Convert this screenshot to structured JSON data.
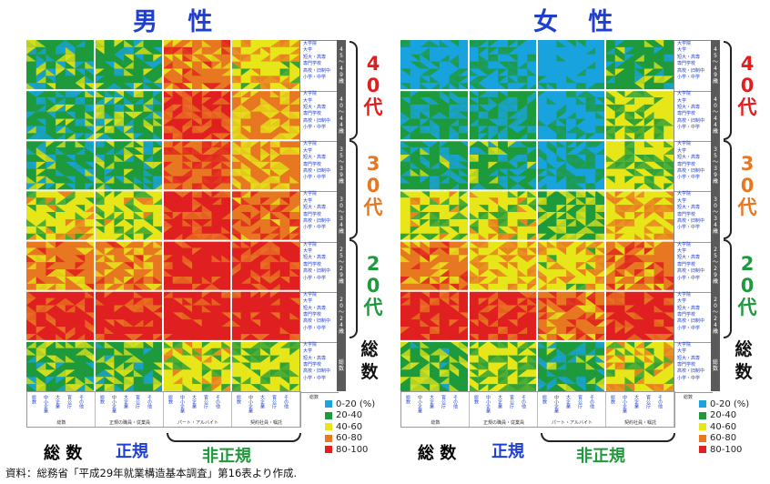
{
  "panels": [
    {
      "title": "男 性",
      "age_labels": [
        {
          "text": "4\n0\n代",
          "color": "#e02020"
        },
        {
          "text": "3\n0\n代",
          "color": "#e87722"
        },
        {
          "text": "2\n0\n代",
          "color": "#1e9a3c"
        }
      ],
      "sousu": "総\n数",
      "bottom": {
        "total": "総 数",
        "regular": "正規",
        "nonregular": "非正規"
      }
    },
    {
      "title": "女 性",
      "age_labels": [
        {
          "text": "4\n0\n代",
          "color": "#e02020"
        },
        {
          "text": "3\n0\n代",
          "color": "#e87722"
        },
        {
          "text": "2\n0\n代",
          "color": "#1e9a3c"
        }
      ],
      "sousu": "総\n数",
      "bottom": {
        "total": "総 数",
        "regular": "正規",
        "nonregular": "非正規"
      }
    }
  ],
  "row_items": [
    "大学院",
    "大学",
    "短大・高専",
    "専門学校",
    "高校・旧制中",
    "小学・中学"
  ],
  "row_items_small": [
    "大学院",
    "大学"
  ],
  "age_bands": [
    "45〜49歳",
    "40〜44歳",
    "35〜39歳",
    "30〜34歳",
    "25〜29歳",
    "20〜24歳",
    "総数"
  ],
  "band_footer": "総数",
  "column_groups": [
    "総数",
    "正規の職員・従業員",
    "パート・アルバイト",
    "契約社員・嘱託"
  ],
  "column_items": [
    "総数",
    "中小企業",
    "大企業",
    "官公庁",
    "その他"
  ],
  "legend": {
    "unit": "(%)",
    "items": [
      {
        "label": "0-20",
        "color": "#1aa3de"
      },
      {
        "label": "20-40",
        "color": "#1e9a3c"
      },
      {
        "label": "40-60",
        "color": "#e6e61a"
      },
      {
        "label": "60-80",
        "color": "#e87722"
      },
      {
        "label": "80-100",
        "color": "#e02020"
      }
    ]
  },
  "source": "資料：総務省「平成29年就業構造基本調査」第16表より作成.",
  "chart_data": {
    "type": "heatmap",
    "color_scale": [
      "#1aa3de",
      "#1e9a3c",
      "#e6e61a",
      "#e87722",
      "#e02020"
    ],
    "color_bins": [
      "0-20",
      "20-40",
      "40-60",
      "60-80",
      "80-100"
    ],
    "value_unit": "%",
    "rows": [
      "40代",
      "40代",
      "30代",
      "30代",
      "20代",
      "20代",
      "総数"
    ],
    "columns": [
      "総数",
      "正規",
      "非正規",
      "非正規"
    ],
    "panels": [
      {
        "title": "男性",
        "values": [
          [
            30,
            30,
            70,
            55
          ],
          [
            28,
            30,
            80,
            60
          ],
          [
            30,
            30,
            78,
            62
          ],
          [
            48,
            45,
            85,
            75
          ],
          [
            68,
            66,
            90,
            82
          ],
          [
            88,
            86,
            92,
            90
          ],
          [
            35,
            32,
            48,
            42
          ]
        ]
      },
      {
        "title": "女性",
        "values": [
          [
            15,
            15,
            10,
            30
          ],
          [
            20,
            22,
            15,
            40
          ],
          [
            25,
            28,
            18,
            42
          ],
          [
            45,
            48,
            38,
            58
          ],
          [
            66,
            58,
            55,
            72
          ],
          [
            88,
            88,
            72,
            86
          ],
          [
            35,
            40,
            28,
            50
          ]
        ]
      }
    ]
  }
}
